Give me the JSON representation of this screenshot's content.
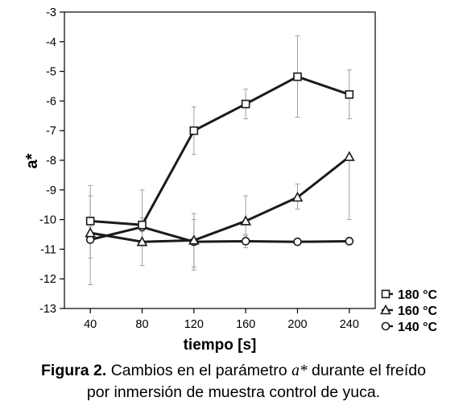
{
  "chart_data": {
    "type": "line",
    "xlabel": "tiempo [s]",
    "ylabel": "a*",
    "x": [
      40,
      80,
      120,
      160,
      200,
      240
    ],
    "xlim": [
      20,
      260
    ],
    "ylim": [
      -13,
      -3
    ],
    "yticks": [
      -3,
      -4,
      -5,
      -6,
      -7,
      -8,
      -9,
      -10,
      -11,
      -12,
      -13
    ],
    "grid": false,
    "legend_position": "bottom-right",
    "series": [
      {
        "name": "180 °C",
        "marker": "square",
        "values": [
          -10.05,
          -10.18,
          -7.0,
          -6.1,
          -5.18,
          -5.78
        ],
        "err_low": [
          -10.25,
          -10.28,
          -7.8,
          -6.6,
          -6.55,
          -6.6
        ],
        "err_high": [
          -8.85,
          -9.0,
          -6.2,
          -5.6,
          -3.8,
          -4.95
        ]
      },
      {
        "name": "160 °C",
        "marker": "triangle",
        "values": [
          -10.45,
          -10.75,
          -10.7,
          -10.05,
          -9.25,
          -7.88
        ],
        "err_low": [
          -12.2,
          -11.55,
          -11.6,
          -10.55,
          -9.65,
          -10.0
        ],
        "err_high": [
          -9.2,
          -9.95,
          -9.8,
          -9.2,
          -8.8,
          -7.85
        ]
      },
      {
        "name": "140 °C",
        "marker": "circle",
        "values": [
          -10.68,
          -10.25,
          -10.75,
          -10.73,
          -10.75,
          -10.73
        ],
        "err_low": [
          -11.3,
          -10.4,
          -11.7,
          -10.95,
          -10.85,
          -10.85
        ],
        "err_high": [
          -10.05,
          -10.1,
          -10.0,
          -10.5,
          -10.65,
          -10.6
        ]
      }
    ]
  },
  "caption": {
    "lead": "Figura 2.",
    "text_before": " Cambios en el parámetro ",
    "symbol": "a*",
    "text_after": " durante el freído",
    "line2": "por inmersión de muestra control de yuca."
  },
  "colors": {
    "line": "#1a1a1a",
    "errorbar": "#a0a0a0",
    "marker_fill": "#ffffff"
  }
}
